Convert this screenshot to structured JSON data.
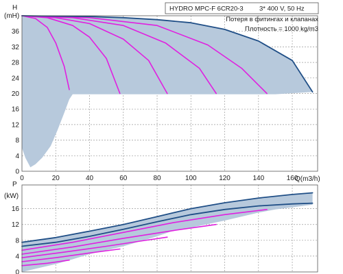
{
  "info": {
    "model": "HYDRO MPC-F 6CR20-3",
    "supply": "3* 400 V, 50 Hz",
    "note1": "Потеря в фитингах и клапанах",
    "note2": "Плотность = 1000 kg/m3"
  },
  "colors": {
    "max_curve": "#1f4e86",
    "reduced_curves": "#e020e0",
    "envelope_fill": "#b7c9dc",
    "grid": "#9a9a9a"
  },
  "chart_data": [
    {
      "id": "head",
      "type": "line",
      "ylabel": "H",
      "yunit": "(mH)",
      "xlim": [
        0,
        175
      ],
      "ylim": [
        0,
        40
      ],
      "xticks": [
        0,
        20,
        40,
        60,
        80,
        100,
        120,
        140,
        160
      ],
      "xtick_labels": [
        "0",
        "20",
        "40",
        "60",
        "80",
        "100",
        "120",
        "140",
        "160"
      ],
      "yticks": [
        0,
        4,
        8,
        12,
        16,
        20,
        24,
        28,
        32,
        36
      ],
      "ytick_labels": [
        "0",
        "4",
        "8",
        "12",
        "16",
        "20",
        "24",
        "28",
        "32",
        "36"
      ],
      "grid": true,
      "envelope": {
        "upper": [
          [
            0,
            40
          ],
          [
            20,
            39.9
          ],
          [
            40,
            39.8
          ],
          [
            60,
            39.5
          ],
          [
            80,
            39
          ],
          [
            100,
            38.2
          ],
          [
            120,
            36.5
          ],
          [
            140,
            33.5
          ],
          [
            160,
            28.5
          ],
          [
            172,
            20.4
          ]
        ],
        "lower_right": [
          [
            172,
            20.4
          ],
          [
            150,
            19.8
          ],
          [
            120,
            19.8
          ],
          [
            100,
            19.8
          ],
          [
            80,
            19.8
          ],
          [
            60,
            19.8
          ],
          [
            40,
            19.8
          ],
          [
            30,
            19.8
          ]
        ],
        "lower_left": [
          [
            30,
            19.8
          ],
          [
            28,
            18.5
          ],
          [
            25,
            15
          ],
          [
            21,
            10.5
          ],
          [
            17,
            6.5
          ],
          [
            12,
            3.5
          ],
          [
            8,
            1.8
          ],
          [
            5,
            1
          ],
          [
            2,
            3.5
          ],
          [
            0,
            6
          ]
        ]
      },
      "series": [
        {
          "role": "max",
          "points": [
            [
              0,
              40
            ],
            [
              20,
              39.9
            ],
            [
              40,
              39.8
            ],
            [
              60,
              39.5
            ],
            [
              80,
              39
            ],
            [
              100,
              38.2
            ],
            [
              120,
              36.5
            ],
            [
              140,
              33.5
            ],
            [
              160,
              28.5
            ],
            [
              172,
              20.4
            ]
          ]
        },
        {
          "role": "reduced",
          "points": [
            [
              0,
              40
            ],
            [
              8,
              39.3
            ],
            [
              15,
              37
            ],
            [
              20,
              33
            ],
            [
              25,
              27
            ],
            [
              28,
              21
            ]
          ]
        },
        {
          "role": "reduced",
          "points": [
            [
              0,
              40
            ],
            [
              15,
              39.5
            ],
            [
              30,
              37.5
            ],
            [
              40,
              34.5
            ],
            [
              50,
              29
            ],
            [
              58,
              20
            ]
          ]
        },
        {
          "role": "reduced",
          "points": [
            [
              0,
              40
            ],
            [
              20,
              39.5
            ],
            [
              40,
              38
            ],
            [
              60,
              34
            ],
            [
              75,
              28.5
            ],
            [
              86,
              20
            ]
          ]
        },
        {
          "role": "reduced",
          "points": [
            [
              0,
              40
            ],
            [
              30,
              39.5
            ],
            [
              60,
              37.5
            ],
            [
              85,
              33
            ],
            [
              105,
              26.5
            ],
            [
              115,
              20
            ]
          ]
        },
        {
          "role": "reduced",
          "points": [
            [
              0,
              40
            ],
            [
              40,
              39.5
            ],
            [
              80,
              37.5
            ],
            [
              110,
              32.5
            ],
            [
              130,
              26.5
            ],
            [
              145,
              20
            ]
          ]
        }
      ]
    },
    {
      "id": "power",
      "type": "line",
      "ylabel": "P",
      "yunit": "(kW)",
      "xlim": [
        0,
        175
      ],
      "ylim": [
        0,
        22
      ],
      "yticks": [
        0,
        4,
        8,
        12,
        16
      ],
      "ytick_labels": [
        "0",
        "4",
        "8",
        "12",
        "16"
      ],
      "grid": true,
      "envelope": {
        "upper": [
          [
            0,
            7.5
          ],
          [
            20,
            8.7
          ],
          [
            40,
            10.3
          ],
          [
            60,
            12
          ],
          [
            80,
            14
          ],
          [
            100,
            16
          ],
          [
            120,
            17.5
          ],
          [
            140,
            18.7
          ],
          [
            160,
            19.6
          ],
          [
            172,
            20
          ]
        ],
        "lower": [
          [
            172,
            17
          ],
          [
            150,
            15.8
          ],
          [
            140,
            15
          ],
          [
            120,
            13
          ],
          [
            100,
            11.2
          ],
          [
            90,
            10.5
          ],
          [
            80,
            9
          ],
          [
            60,
            6.5
          ],
          [
            40,
            4.5
          ],
          [
            30,
            3.2
          ],
          [
            20,
            2
          ],
          [
            10,
            1
          ],
          [
            0,
            0
          ]
        ]
      },
      "series": [
        {
          "role": "max",
          "points": [
            [
              0,
              7.5
            ],
            [
              20,
              8.7
            ],
            [
              40,
              10.3
            ],
            [
              60,
              12
            ],
            [
              80,
              14
            ],
            [
              100,
              16
            ],
            [
              120,
              17.5
            ],
            [
              140,
              18.7
            ],
            [
              160,
              19.6
            ],
            [
              172,
              20
            ]
          ]
        },
        {
          "role": "max",
          "points": [
            [
              0,
              6.5
            ],
            [
              20,
              7.5
            ],
            [
              40,
              9
            ],
            [
              60,
              10.8
            ],
            [
              80,
              12.7
            ],
            [
              100,
              14.5
            ],
            [
              120,
              15.8
            ],
            [
              140,
              16.7
            ],
            [
              160,
              17.2
            ],
            [
              172,
              17.4
            ]
          ]
        },
        {
          "role": "reduced",
          "points": [
            [
              0,
              5.5
            ],
            [
              30,
              7.5
            ],
            [
              60,
              10
            ],
            [
              90,
              12.5
            ],
            [
              120,
              14.5
            ],
            [
              145,
              15.8
            ]
          ]
        },
        {
          "role": "reduced",
          "points": [
            [
              0,
              4.5
            ],
            [
              30,
              6.3
            ],
            [
              60,
              8.5
            ],
            [
              90,
              10.5
            ],
            [
              115,
              12
            ]
          ]
        },
        {
          "role": "reduced",
          "points": [
            [
              0,
              3.6
            ],
            [
              25,
              5
            ],
            [
              50,
              6.5
            ],
            [
              70,
              7.8
            ],
            [
              86,
              8.8
            ]
          ]
        },
        {
          "role": "reduced",
          "points": [
            [
              0,
              2.6
            ],
            [
              20,
              3.6
            ],
            [
              40,
              4.8
            ],
            [
              58,
              5.8
            ]
          ]
        },
        {
          "role": "reduced",
          "points": [
            [
              0,
              1.6
            ],
            [
              15,
              2.2
            ],
            [
              28,
              3
            ]
          ]
        }
      ]
    }
  ]
}
